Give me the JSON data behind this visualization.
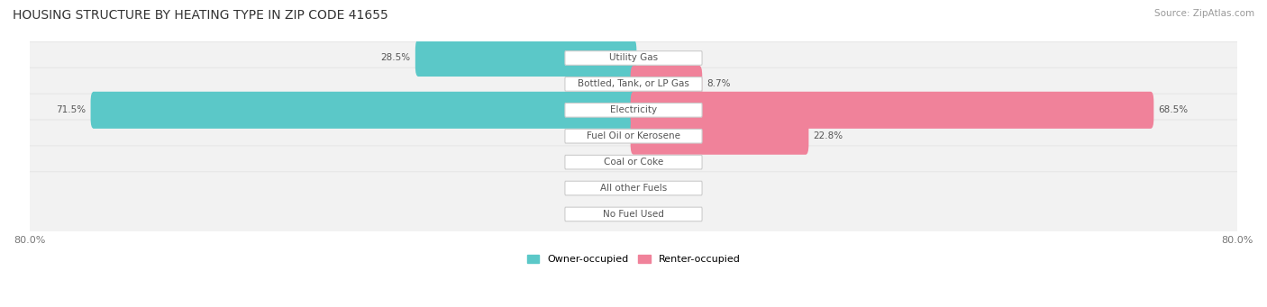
{
  "title": "HOUSING STRUCTURE BY HEATING TYPE IN ZIP CODE 41655",
  "source": "Source: ZipAtlas.com",
  "categories": [
    "Utility Gas",
    "Bottled, Tank, or LP Gas",
    "Electricity",
    "Fuel Oil or Kerosene",
    "Coal or Coke",
    "All other Fuels",
    "No Fuel Used"
  ],
  "owner_values": [
    28.5,
    0.0,
    71.5,
    0.0,
    0.0,
    0.0,
    0.0
  ],
  "renter_values": [
    0.0,
    8.7,
    68.5,
    22.8,
    0.0,
    0.0,
    0.0
  ],
  "owner_color": "#5bc8c8",
  "renter_color": "#f0829a",
  "row_bg_color": "#f2f2f2",
  "row_border_color": "#e0e0e0",
  "x_min": -80.0,
  "x_max": 80.0,
  "label_color": "#555555",
  "title_color": "#333333",
  "source_color": "#999999",
  "legend_owner": "Owner-occupied",
  "legend_renter": "Renter-occupied"
}
